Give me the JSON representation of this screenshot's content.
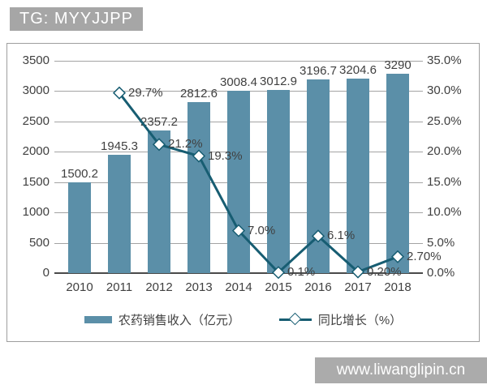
{
  "badge": {
    "text": "TG: MYYJJPP"
  },
  "watermark": {
    "text": "www.liwanglipin.cn"
  },
  "colors": {
    "bar": "#5b8fa8",
    "line": "#175d72",
    "grid": "#a3a3a3",
    "axis": "#4a4a4a",
    "text": "#404040",
    "badge_bg": "#a6a6a6",
    "badge_text": "#ffffff",
    "ribbon_bg": "#ababab",
    "ribbon_text": "#ffffff",
    "marker_fill": "#ffffff"
  },
  "chart_data": {
    "type": "bar",
    "subtype": "bar-line-combo",
    "categories": [
      "2010",
      "2011",
      "2012",
      "2013",
      "2014",
      "2015",
      "2016",
      "2017",
      "2018"
    ],
    "series": [
      {
        "name": "农药销售收入（亿元）",
        "type": "bar",
        "axis": "left",
        "values": [
          1500.2,
          1945.3,
          2357.2,
          2812.6,
          3008.4,
          3012.9,
          3196.7,
          3204.6,
          3290
        ],
        "labels": [
          "1500.2",
          "1945.3",
          "2357.2",
          "2812.6",
          "3008.4",
          "3012.9",
          "3196.7",
          "3204.6",
          "3290"
        ]
      },
      {
        "name": "同比增长（%）",
        "type": "line",
        "axis": "right",
        "values": [
          null,
          29.7,
          21.2,
          19.3,
          7.0,
          0.1,
          6.1,
          0.2,
          2.7
        ],
        "labels": [
          "",
          "29.7%",
          "21.2%",
          "19.3%",
          "7.0%",
          "0.1%",
          "6.1%",
          "0.20%",
          "2.70%"
        ]
      }
    ],
    "left_axis": {
      "min": 0,
      "max": 3500,
      "ticks": [
        "0",
        "500",
        "1000",
        "1500",
        "2000",
        "2500",
        "3000",
        "3500"
      ]
    },
    "right_axis": {
      "min": 0,
      "max": 35,
      "ticks": [
        "0.0%",
        "5.0%",
        "10.0%",
        "15.0%",
        "20.0%",
        "25.0%",
        "30.0%",
        "35.0%"
      ]
    },
    "grid": true,
    "legend_position": "bottom"
  }
}
